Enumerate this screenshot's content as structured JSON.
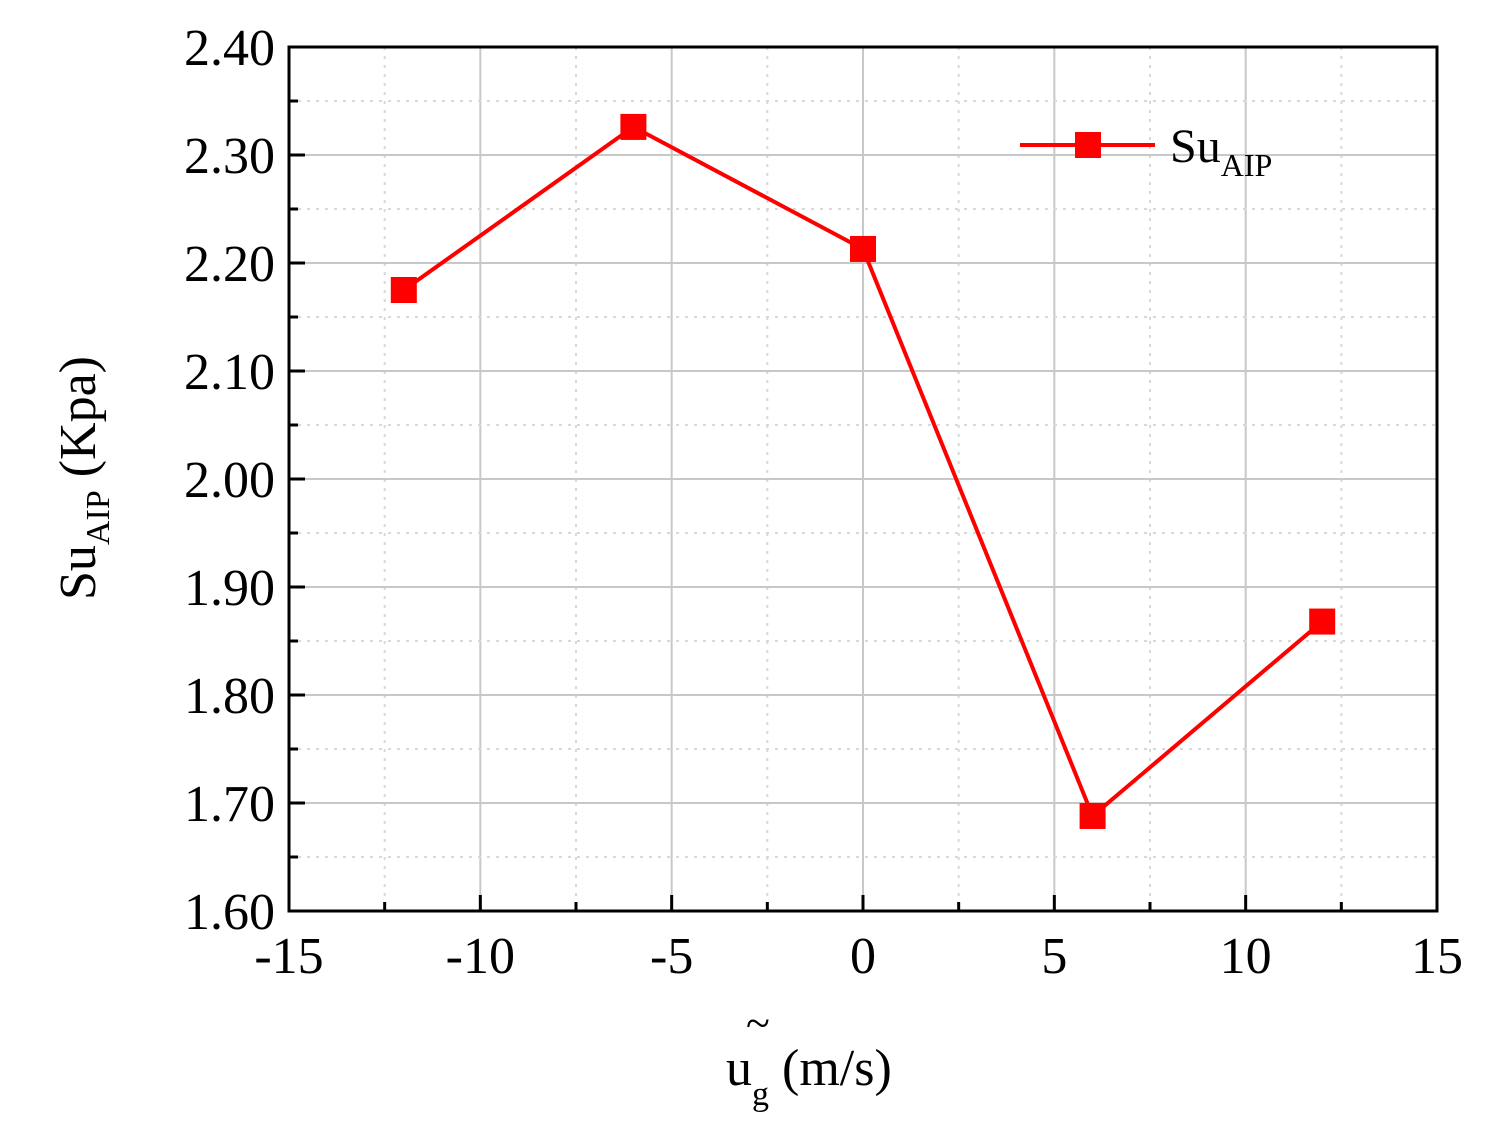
{
  "chart_data": {
    "type": "line",
    "title": "",
    "xlabel": {
      "base": "u",
      "subscript": "g",
      "accent": "~",
      "unit": " (m/s)"
    },
    "ylabel": {
      "base": "Su",
      "subscript": "AIP",
      "unit": " (Kpa)"
    },
    "xlim": [
      -15,
      15
    ],
    "ylim": [
      1.6,
      2.4
    ],
    "x_ticks": [
      "-15",
      "-10",
      "-5",
      "0",
      "5",
      "10",
      "15"
    ],
    "x_tick_values": [
      -15,
      -10,
      -5,
      0,
      5,
      10,
      15
    ],
    "y_ticks": [
      "1.60",
      "1.70",
      "1.80",
      "1.90",
      "2.00",
      "2.10",
      "2.20",
      "2.30",
      "2.40"
    ],
    "y_tick_values": [
      1.6,
      1.7,
      1.8,
      1.9,
      2.0,
      2.1,
      2.2,
      2.3,
      2.4
    ],
    "grid": true,
    "legend_position": "top-right",
    "series": [
      {
        "name": "Su",
        "name_subscript": "AIP",
        "color": "#ff0000",
        "marker": "square",
        "x": [
          -12,
          -6,
          0,
          6,
          12
        ],
        "y": [
          2.175,
          2.326,
          2.213,
          1.688,
          1.868
        ]
      }
    ]
  }
}
